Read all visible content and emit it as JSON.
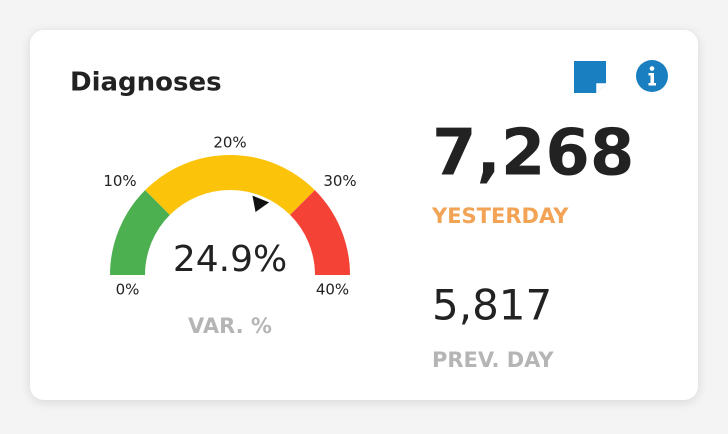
{
  "chart_data": {
    "type": "gauge",
    "title": "Diagnoses",
    "values": [
      24.9
    ],
    "value_labels": [
      "24.9%"
    ],
    "caption": "VAR. %",
    "ylim": [
      0,
      40
    ],
    "yticks": [
      {
        "value": 0,
        "label": "0%"
      },
      {
        "value": 10,
        "label": "10%"
      },
      {
        "value": 20,
        "label": "20%"
      },
      {
        "value": 30,
        "label": "30%"
      },
      {
        "value": 40,
        "label": "40%"
      }
    ],
    "bands": [
      {
        "from": 0,
        "to": 10,
        "color": "#4caf50"
      },
      {
        "from": 10,
        "to": 30,
        "color": "#fcc30b"
      },
      {
        "from": 30,
        "to": 40,
        "color": "#f44336"
      }
    ]
  },
  "stats": [
    {
      "value": "7,268",
      "label": "YESTERDAY"
    },
    {
      "value": "5,817",
      "label": "PREV. DAY"
    }
  ]
}
